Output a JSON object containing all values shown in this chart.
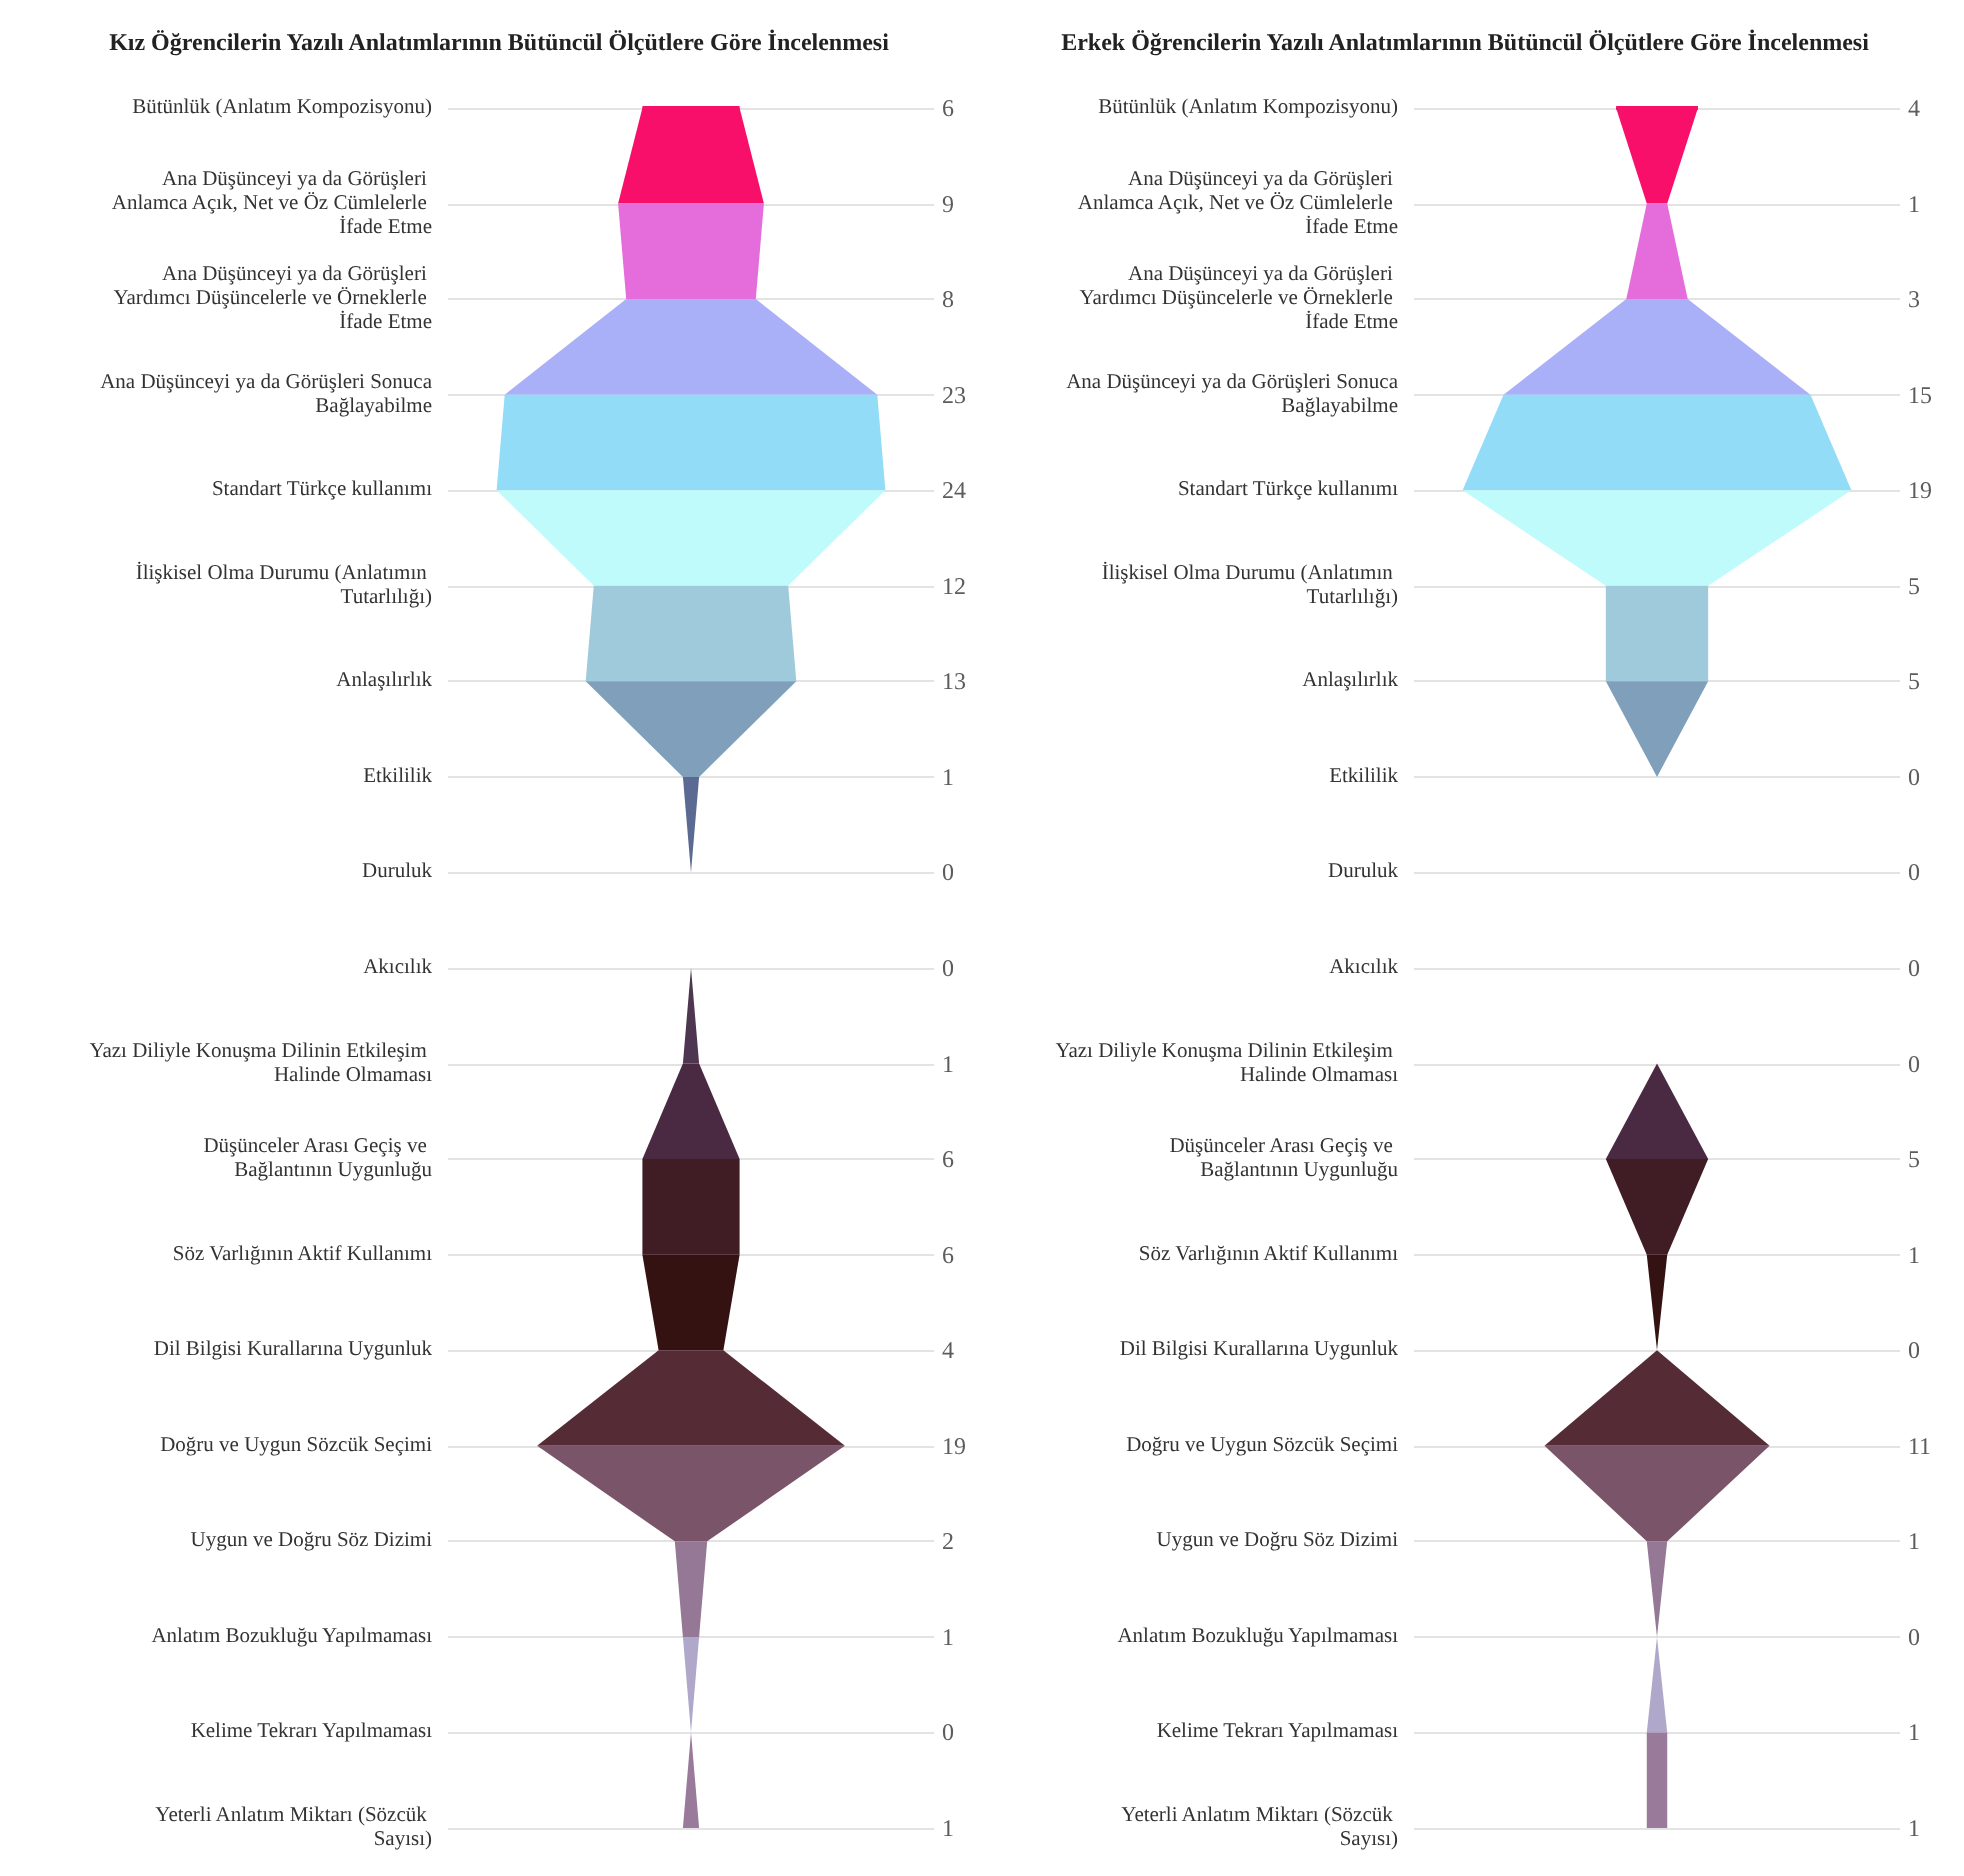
{
  "chart_data": [
    {
      "type": "other",
      "title": "Kız Öğrencilerin Yazılı Anlatımlarının Bütüncül Ölçütlere Göre İncelenmesi",
      "categories": [
        "Bütünlük (Anlatım Kompozisyonu)",
        "Ana Düşünceyi ya da Görüşleri Anlamca Açık, Net ve Öz Cümlelerle İfade Etme",
        "Ana Düşünceyi ya da Görüşleri Yardımcı Düşüncelerle ve Örneklerle İfade Etme",
        "Ana Düşünceyi ya da Görüşleri Sonuca Bağlayabilme",
        "Standart Türkçe kullanımı",
        "İlişkisel Olma Durumu (Anlatımın Tutarlılığı)",
        "Anlaşılırlık",
        "Etkililik",
        "Duruluk",
        "Akıcılık",
        "Yazı Diliyle Konuşma Dilinin Etkileşim Halinde Olmaması",
        "Düşünceler Arası Geçiş ve Bağlantının Uygunluğu",
        "Söz Varlığının Aktif Kullanımı",
        "Dil Bilgisi Kurallarına Uygunluk",
        "Doğru ve Uygun Sözcük Seçimi",
        "Uygun ve Doğru Söz Dizimi",
        "Anlatım Bozukluğu Yapılmaması",
        "Kelime Tekrarı Yapılmaması",
        "Yeterli Anlatım Miktarı (Sözcük Sayısı)"
      ],
      "values": [
        6,
        9,
        8,
        23,
        24,
        12,
        13,
        1,
        0,
        0,
        1,
        6,
        6,
        4,
        19,
        2,
        1,
        0,
        1
      ],
      "colors": [
        "#f80f6a",
        "#f80f6a",
        "#e56ddb",
        "#aab0f8",
        "#93dcf8",
        "#c0fbfb",
        "#9ecadb",
        "#7f9fba",
        "#5a6a92",
        "#5a6a92",
        "#4e3650",
        "#4a2a42",
        "#401d25",
        "#351212",
        "#552b36",
        "#7a5468",
        "#957895",
        "#b0a8cb",
        "#9a7a9a"
      ],
      "data_labels": true
    },
    {
      "type": "other",
      "title": "Erkek Öğrencilerin Yazılı Anlatımlarının Bütüncül Ölçütlere Göre İncelenmesi",
      "categories": [
        "Bütünlük (Anlatım Kompozisyonu)",
        "Ana Düşünceyi ya da Görüşleri Anlamca Açık, Net ve Öz Cümlelerle İfade Etme",
        "Ana Düşünceyi ya da Görüşleri Yardımcı Düşüncelerle ve Örneklerle İfade Etme",
        "Ana Düşünceyi ya da Görüşleri Sonuca Bağlayabilme",
        "Standart Türkçe kullanımı",
        "İlişkisel Olma Durumu (Anlatımın Tutarlılığı)",
        "Anlaşılırlık",
        "Etkililik",
        "Duruluk",
        "Akıcılık",
        "Yazı Diliyle Konuşma Dilinin Etkileşim Halinde Olmaması",
        "Düşünceler Arası Geçiş ve Bağlantının Uygunluğu",
        "Söz Varlığının Aktif Kullanımı",
        "Dil Bilgisi Kurallarına Uygunluk",
        "Doğru ve Uygun Sözcük Seçimi",
        "Uygun ve Doğru Söz Dizimi",
        "Anlatım Bozukluğu Yapılmaması",
        "Kelime Tekrarı Yapılmaması",
        "Yeterli Anlatım Miktarı (Sözcük Sayısı)"
      ],
      "values": [
        4,
        1,
        3,
        15,
        19,
        5,
        5,
        0,
        0,
        0,
        0,
        5,
        1,
        0,
        11,
        1,
        0,
        1,
        1
      ],
      "colors": [
        "#f80f6a",
        "#f80f6a",
        "#e56ddb",
        "#aab0f8",
        "#93dcf8",
        "#c0fbfb",
        "#9ecadb",
        "#7f9fba",
        "#5a6a92",
        "#5a6a92",
        "#4e3650",
        "#4a2a42",
        "#401d25",
        "#351212",
        "#552b36",
        "#7a5468",
        "#957895",
        "#b0a8cb",
        "#9a7a9a"
      ],
      "data_labels": true
    }
  ]
}
